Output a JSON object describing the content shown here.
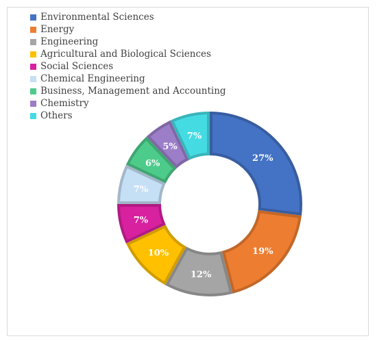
{
  "chart_data": {
    "type": "pie",
    "donut": true,
    "legend_position": "top-left",
    "categories": [
      "Environmental Sciences",
      "Energy",
      "Engineering",
      "Agricultural and Biological Sciences",
      "Social Sciences",
      "Chemical Engineering",
      "Business, Management and Accounting",
      "Chemistry",
      "Others"
    ],
    "values": [
      27,
      19,
      12,
      10,
      7,
      7,
      6,
      5,
      7
    ],
    "value_labels": [
      "27%",
      "19%",
      "12%",
      "10%",
      "7%",
      "7%",
      "6%",
      "5%",
      "7%"
    ],
    "colors": [
      "#4472C4",
      "#ED7D31",
      "#A5A5A5",
      "#FFC000",
      "#D8219F",
      "#C5DFF5",
      "#4DCB8A",
      "#9B7DC8",
      "#45DBE3"
    ]
  }
}
